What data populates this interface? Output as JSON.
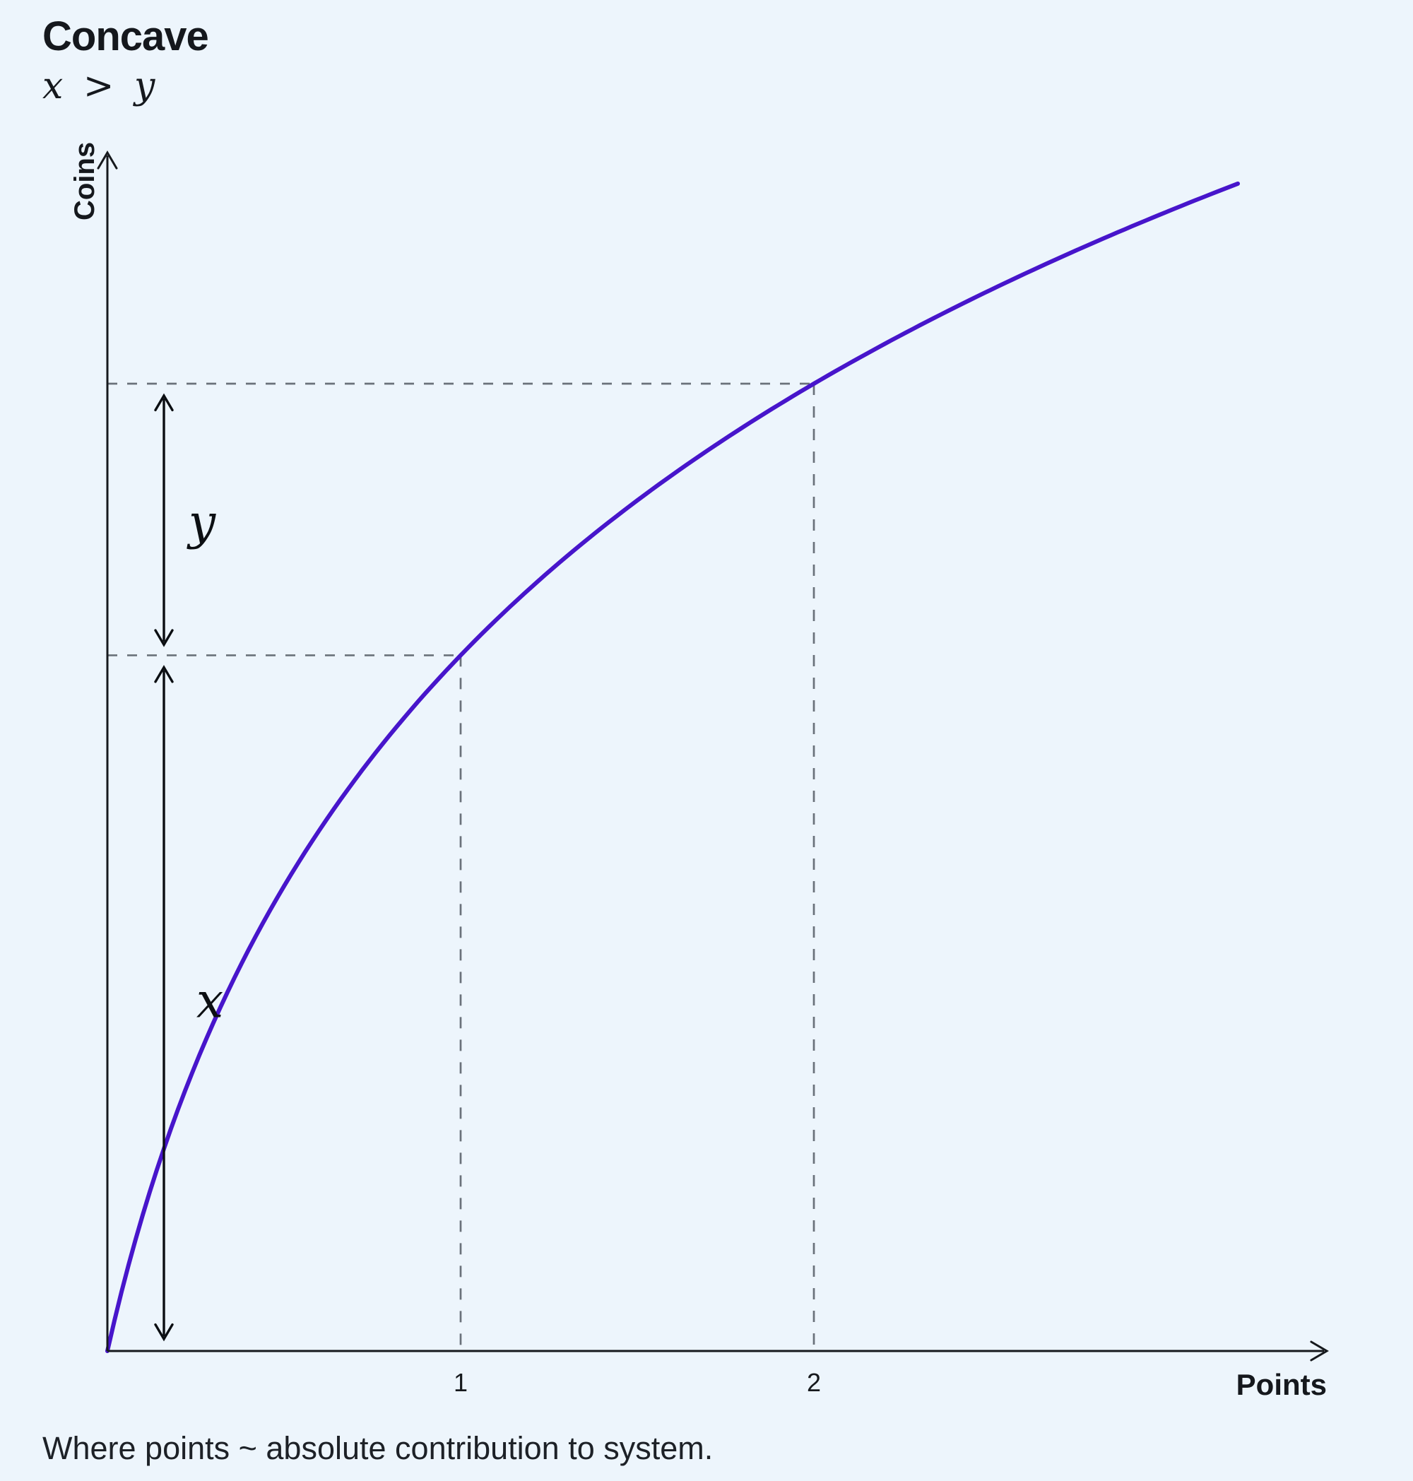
{
  "header": {
    "title": "Concave",
    "subtitle": "x > y"
  },
  "chart_data": {
    "type": "line",
    "title": "Concave",
    "subtitle": "x > y",
    "xlabel": "Points",
    "ylabel": "Coins",
    "x_ticks": [
      "1",
      "2"
    ],
    "x_range": [
      0,
      3.45
    ],
    "grid": false,
    "legend": false,
    "curve": {
      "description": "concave increasing curve, coins = a*ln(1 + k*points)",
      "a": 1.35,
      "k": 3.3,
      "t_end": 3.2
    },
    "key_points": [
      {
        "points": 1,
        "coins": 1.97
      },
      {
        "points": 2,
        "coins": 2.74
      }
    ],
    "annotations": [
      {
        "label": "x",
        "span": "coins gained between points 0 and 1"
      },
      {
        "label": "y",
        "span": "coins gained between points 1 and 2"
      }
    ],
    "colors": {
      "background": "#edf5fc",
      "curve": "#4715cb",
      "guide": "#6a717a",
      "axis": "#16191d",
      "arrow": "#0b0e12"
    }
  },
  "footer": {
    "note": "Where points ~ absolute contribution to system."
  }
}
